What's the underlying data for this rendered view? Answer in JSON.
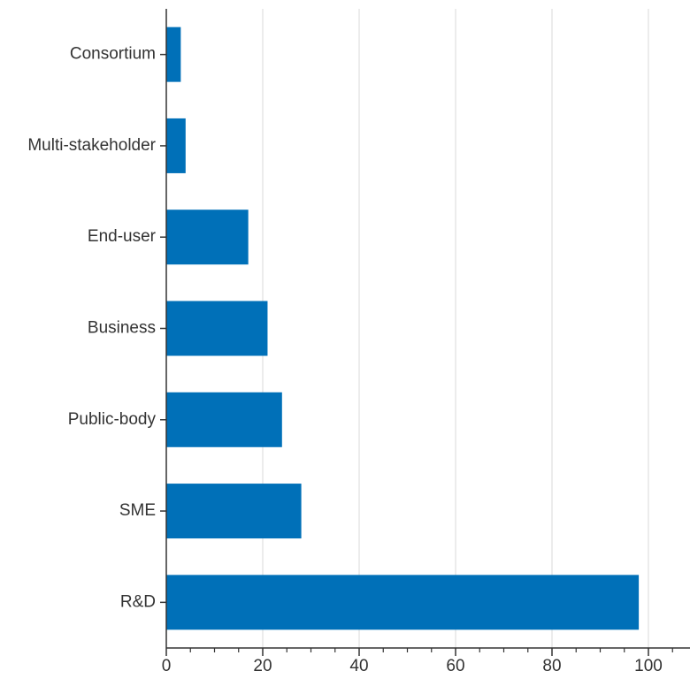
{
  "chart_data": {
    "type": "bar",
    "orientation": "horizontal",
    "categories": [
      "Consortium",
      "Multi-stakeholder",
      "End-user",
      "Business",
      "Public-body",
      "SME",
      "R&D"
    ],
    "values": [
      3,
      4,
      17,
      21,
      24,
      28,
      98
    ],
    "xlim": [
      0,
      110
    ],
    "xticks": [
      "0",
      "20",
      "40",
      "60",
      "80",
      "100"
    ],
    "title": "",
    "xlabel": "",
    "ylabel": "",
    "grid": "vertical",
    "bar_color": "#0070b8",
    "grid_color": "#e6e6e6",
    "axis_color": "#333333",
    "label_color": "#333333"
  }
}
